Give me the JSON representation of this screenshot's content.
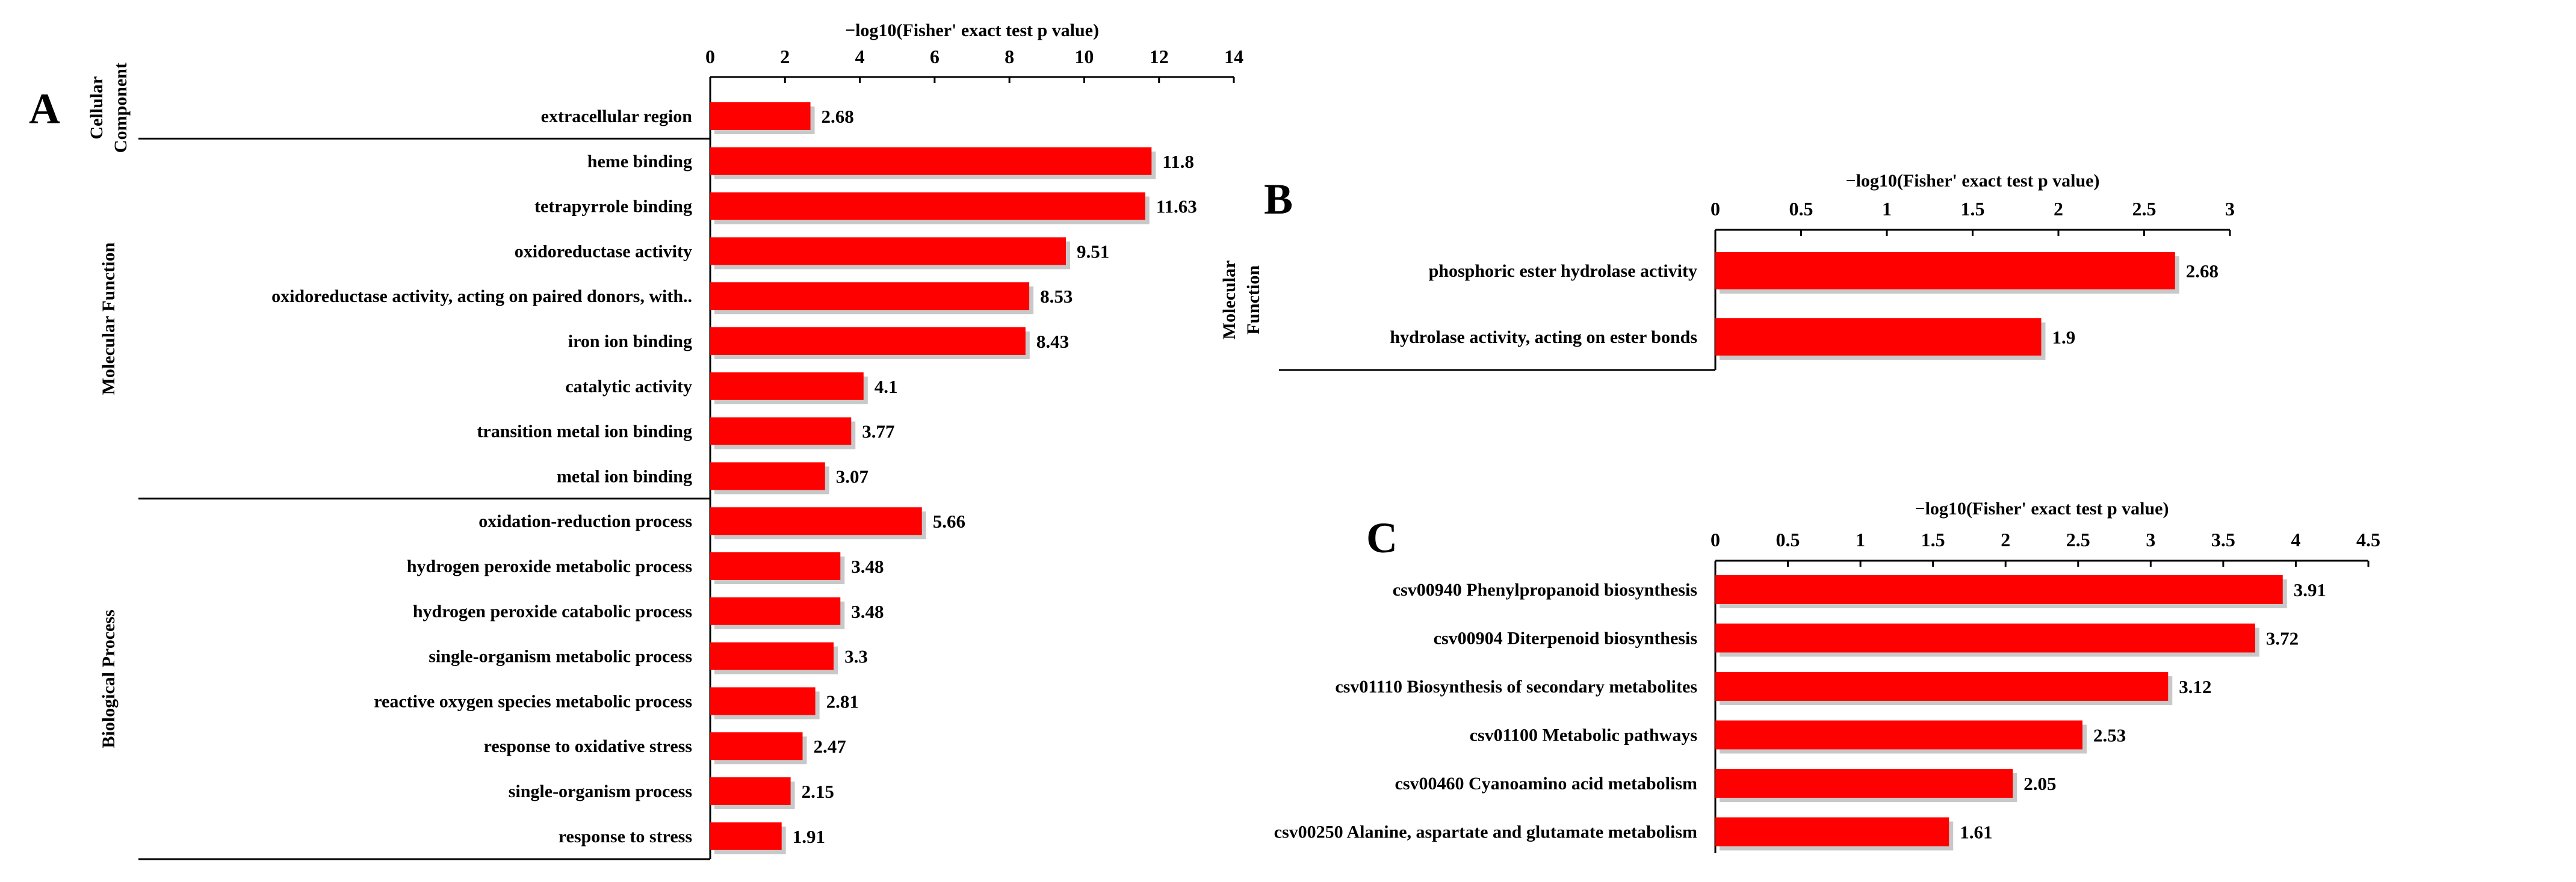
{
  "chart_data": [
    {
      "panel": "A",
      "type": "bar",
      "orientation": "horizontal",
      "title": "−log10(Fisher' exact test p value)",
      "xlim": [
        0,
        14
      ],
      "xticks": [
        "0",
        "2",
        "4",
        "6",
        "8",
        "10",
        "12",
        "14"
      ],
      "groups": [
        {
          "name": "Cellular Component",
          "lines": [
            "Cellular",
            "Component"
          ],
          "start": 0,
          "count": 1
        },
        {
          "name": "Molecular Function",
          "lines": [
            "Molecular Function"
          ],
          "start": 1,
          "count": 8
        },
        {
          "name": "Biological Process",
          "lines": [
            "Biological Process"
          ],
          "start": 9,
          "count": 8
        }
      ],
      "categories": [
        "extracellular region",
        "heme binding",
        "tetrapyrrole binding",
        "oxidoreductase activity",
        "oxidoreductase activity, acting on paired donors, with..",
        "iron ion binding",
        "catalytic activity",
        "transition metal ion binding",
        "metal ion binding",
        "oxidation-reduction process",
        "hydrogen peroxide metabolic process",
        "hydrogen peroxide catabolic process",
        "single-organism metabolic process",
        "reactive oxygen species metabolic process",
        "response to oxidative stress",
        "single-organism process",
        "response to stress"
      ],
      "values": [
        2.68,
        11.8,
        11.63,
        9.51,
        8.53,
        8.43,
        4.1,
        3.77,
        3.07,
        5.66,
        3.48,
        3.48,
        3.3,
        2.81,
        2.47,
        2.15,
        1.91
      ],
      "value_labels": [
        "2.68",
        "11.8",
        "11.63",
        "9.51",
        "8.53",
        "8.43",
        "4.1",
        "3.77",
        "3.07",
        "5.66",
        "3.48",
        "3.48",
        "3.3",
        "2.81",
        "2.47",
        "2.15",
        "1.91"
      ],
      "color": "#ff0000"
    },
    {
      "panel": "B",
      "type": "bar",
      "orientation": "horizontal",
      "title": "−log10(Fisher' exact test p value)",
      "xlim": [
        0,
        3
      ],
      "xticks": [
        "0",
        "0.5",
        "1",
        "1.5",
        "2",
        "2.5",
        "3"
      ],
      "groups": [
        {
          "name": "Molecular Function",
          "lines": [
            "Molecular",
            "Function"
          ],
          "start": 0,
          "count": 2
        }
      ],
      "categories": [
        "phosphoric ester hydrolase activity",
        "hydrolase activity, acting on ester bonds"
      ],
      "values": [
        2.68,
        1.9
      ],
      "value_labels": [
        "2.68",
        "1.9"
      ],
      "color": "#ff0000"
    },
    {
      "panel": "C",
      "type": "bar",
      "orientation": "horizontal",
      "title": "−log10(Fisher' exact test p value)",
      "xlim": [
        0,
        4.5
      ],
      "xticks": [
        "0",
        "0.5",
        "1",
        "1.5",
        "2",
        "2.5",
        "3",
        "3.5",
        "4",
        "4.5"
      ],
      "groups": [],
      "categories": [
        "csv00940 Phenylpropanoid biosynthesis",
        "csv00904 Diterpenoid biosynthesis",
        "csv01110 Biosynthesis of secondary metabolites",
        "csv01100 Metabolic pathways",
        "csv00460 Cyanoamino acid metabolism",
        "csv00250 Alanine, aspartate and glutamate metabolism"
      ],
      "values": [
        3.91,
        3.72,
        3.12,
        2.53,
        2.05,
        1.61
      ],
      "value_labels": [
        "3.91",
        "3.72",
        "3.12",
        "2.53",
        "2.05",
        "1.61"
      ],
      "color": "#ff0000"
    }
  ]
}
